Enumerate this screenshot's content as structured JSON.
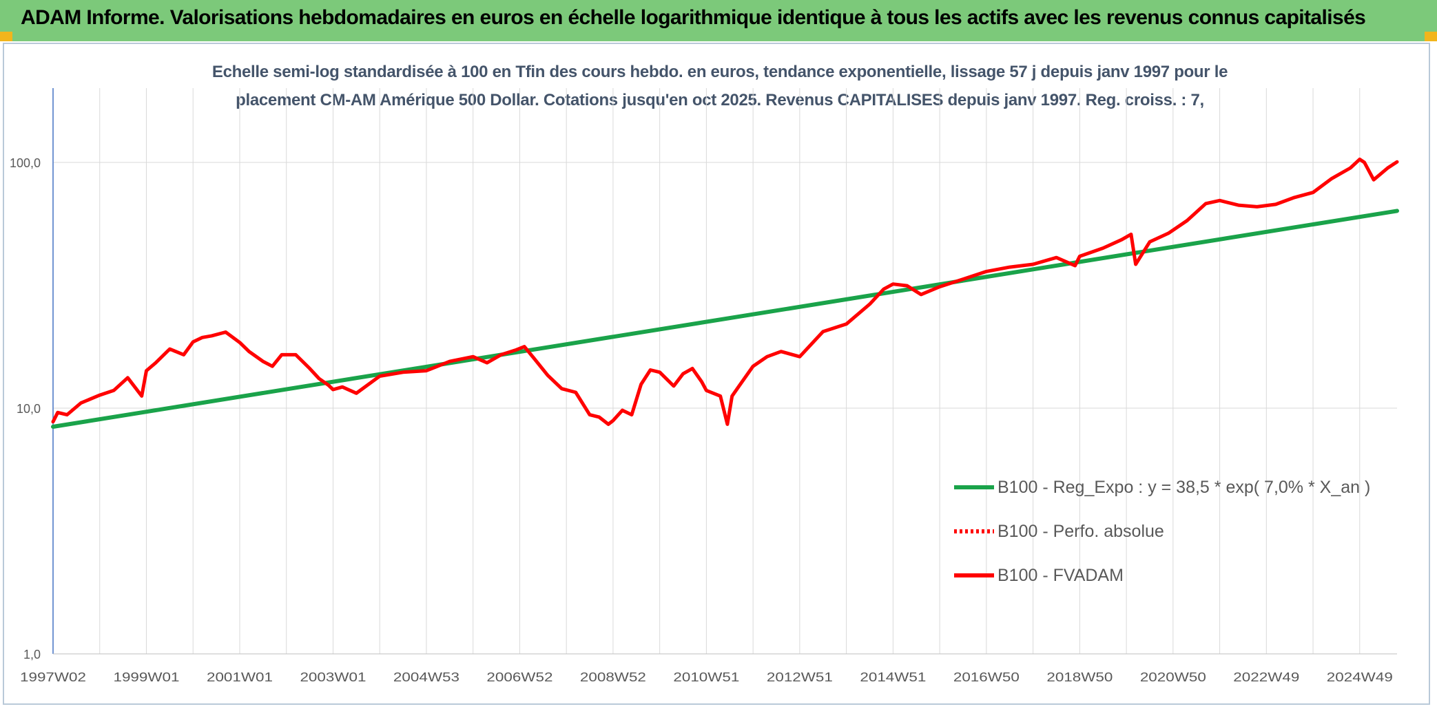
{
  "header": {
    "title": "ADAM Informe. Valorisations hebdomadaires en euros en échelle logarithmique identique à tous les actifs avec les revenus connus capitalisés"
  },
  "colors": {
    "header_bg": "#7cc97a",
    "accent_corner": "#f2b51c",
    "trend": "#1aa34a",
    "series_red": "#ff0000",
    "subtitle": "#44546a"
  },
  "chart_data": {
    "type": "line",
    "title": "Echelle semi-log standardisée à 100 en Tfin des cours hebdo. en euros, tendance exponentielle, lissage 57 j depuis janv 1997 pour le placement CM-AM Amérique 500 Dollar. Cotations jusqu'en oct 2025. Revenus CAPITALISES depuis janv 1997. Reg. croiss. : 7,",
    "title_lines": [
      "Echelle semi-log standardisée à 100 en Tfin des cours hebdo. en euros, tendance exponentielle, lissage 57 j depuis janv 1997 pour le",
      "placement CM-AM Amérique 500 Dollar. Cotations jusqu'en oct 2025. Revenus CAPITALISES depuis janv 1997. Reg. croiss. : 7,"
    ],
    "y_scale": "log",
    "ylim": [
      1,
      100
    ],
    "y_ticks": [
      {
        "value": 100,
        "label": "100,0"
      },
      {
        "value": 10,
        "label": "10,0"
      },
      {
        "value": 1,
        "label": "1,0"
      }
    ],
    "xlim": [
      1997.0,
      2025.8
    ],
    "x_ticks": [
      {
        "value": 1997.0,
        "label": "1997W02"
      },
      {
        "value": 1999.0,
        "label": "1999W01"
      },
      {
        "value": 2001.0,
        "label": "2001W01"
      },
      {
        "value": 2003.0,
        "label": "2003W01"
      },
      {
        "value": 2005.0,
        "label": "2004W53"
      },
      {
        "value": 2007.0,
        "label": "2006W52"
      },
      {
        "value": 2009.0,
        "label": "2008W52"
      },
      {
        "value": 2011.0,
        "label": "2010W51"
      },
      {
        "value": 2013.0,
        "label": "2012W51"
      },
      {
        "value": 2015.0,
        "label": "2014W51"
      },
      {
        "value": 2017.0,
        "label": "2016W50"
      },
      {
        "value": 2019.0,
        "label": "2018W50"
      },
      {
        "value": 2021.0,
        "label": "2020W50"
      },
      {
        "value": 2023.0,
        "label": "2022W49"
      },
      {
        "value": 2025.0,
        "label": "2024W49"
      }
    ],
    "grid": true,
    "legend_position": "bottom-right",
    "series": [
      {
        "name": "B100 - Reg_Expo : y = 38,5 * exp( 7,0% *  X_an )",
        "color": "#1aa34a",
        "style": "solid",
        "x": [
          1997.0,
          2025.8
        ],
        "y": [
          8.4,
          63.5
        ]
      },
      {
        "name": "B100 - Perfo. absolue",
        "color": "#ff0000",
        "style": "dotted",
        "x": [],
        "y": []
      },
      {
        "name": "B100 - FVADAM",
        "color": "#ff0000",
        "style": "solid",
        "x": [
          1997.0,
          1997.1,
          1997.3,
          1997.6,
          1998.0,
          1998.3,
          1998.6,
          1998.9,
          1999.0,
          1999.2,
          1999.5,
          1999.8,
          2000.0,
          2000.2,
          2000.4,
          2000.7,
          2001.0,
          2001.2,
          2001.5,
          2001.7,
          2001.9,
          2002.2,
          2002.5,
          2002.7,
          2002.9,
          2003.0,
          2003.2,
          2003.5,
          2004.0,
          2004.5,
          2005.0,
          2005.5,
          2006.0,
          2006.3,
          2006.6,
          2006.9,
          2007.1,
          2007.3,
          2007.6,
          2007.9,
          2008.2,
          2008.5,
          2008.7,
          2008.9,
          2009.0,
          2009.2,
          2009.4,
          2009.6,
          2009.8,
          2010.0,
          2010.3,
          2010.5,
          2010.7,
          2010.9,
          2011.0,
          2011.3,
          2011.45,
          2011.55,
          2011.7,
          2012.0,
          2012.3,
          2012.6,
          2013.0,
          2013.5,
          2014.0,
          2014.5,
          2014.8,
          2015.0,
          2015.3,
          2015.6,
          2016.0,
          2016.5,
          2017.0,
          2017.5,
          2018.0,
          2018.5,
          2018.9,
          2019.0,
          2019.5,
          2019.9,
          2020.1,
          2020.2,
          2020.5,
          2020.9,
          2021.3,
          2021.7,
          2022.0,
          2022.4,
          2022.8,
          2023.2,
          2023.6,
          2024.0,
          2024.4,
          2024.8,
          2025.0,
          2025.1,
          2025.3,
          2025.6,
          2025.8
        ],
        "y": [
          8.8,
          9.6,
          9.4,
          10.5,
          11.3,
          11.8,
          13.3,
          11.2,
          14.2,
          15.3,
          17.4,
          16.5,
          18.6,
          19.4,
          19.7,
          20.4,
          18.5,
          17.0,
          15.5,
          14.8,
          16.5,
          16.5,
          14.5,
          13.2,
          12.4,
          11.9,
          12.2,
          11.5,
          13.5,
          14.0,
          14.2,
          15.5,
          16.2,
          15.3,
          16.5,
          17.2,
          17.8,
          16.0,
          13.6,
          12.0,
          11.6,
          9.4,
          9.2,
          8.6,
          8.9,
          9.8,
          9.4,
          12.5,
          14.3,
          14.0,
          12.3,
          13.8,
          14.5,
          12.8,
          11.8,
          11.2,
          8.6,
          11.2,
          12.3,
          14.8,
          16.2,
          17.0,
          16.2,
          20.5,
          22.0,
          26.5,
          30.5,
          32.0,
          31.5,
          29.0,
          31.2,
          33.5,
          36.0,
          37.5,
          38.5,
          41.0,
          38.0,
          41.5,
          44.8,
          48.5,
          51.0,
          38.5,
          47.5,
          51.5,
          58.0,
          68.0,
          70.0,
          67.0,
          66.0,
          67.5,
          72.0,
          75.5,
          86.0,
          95.0,
          103.0,
          100.0,
          85.0,
          95.0,
          100.5
        ]
      }
    ]
  }
}
